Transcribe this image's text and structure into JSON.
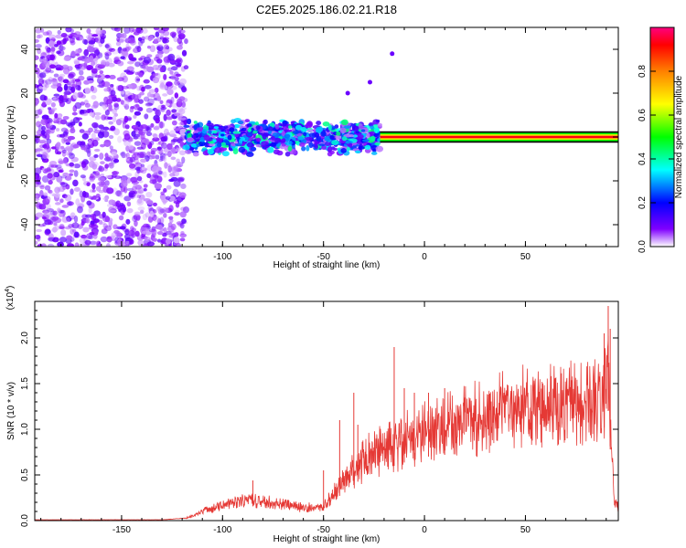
{
  "title": "C2E5.2025.186.02.21.R18",
  "colors": {
    "spectrum_scale": [
      "#ffffff",
      "#8000ff",
      "#0000ff",
      "#00ffff",
      "#00ff00",
      "#ffff00",
      "#ff8000",
      "#ff0000",
      "#ff0080"
    ],
    "snr_line": "#e53935",
    "axes": "#000000"
  },
  "chart_data": [
    {
      "type": "heatmap",
      "xlabel": "Height of straight line (km)",
      "ylabel": "Frequency (Hz)",
      "xlim": [
        -193,
        96
      ],
      "ylim": [
        -50,
        50
      ],
      "x_ticks": [
        -150,
        -100,
        -50,
        0,
        50
      ],
      "y_ticks": [
        -40,
        -20,
        0,
        20,
        40
      ],
      "colorbar": {
        "label": "Normalized spectral amplitude",
        "range": [
          0,
          1
        ],
        "ticks": [
          "0.0",
          "0.2",
          "0.4",
          "0.6",
          "0.8"
        ]
      },
      "regions": [
        {
          "x_range": [
            -193,
            -118
          ],
          "freq_range": [
            -50,
            50
          ],
          "character": "scattered low-amplitude noise"
        },
        {
          "x_range": [
            -118,
            -22
          ],
          "freq_range": [
            -12,
            12
          ],
          "character": "mixed amplitude signal band around 0 Hz"
        },
        {
          "x_range": [
            -22,
            96
          ],
          "freq_range": [
            -2,
            2
          ],
          "character": "strong narrow line at 0 Hz"
        }
      ],
      "outlier_points": [
        {
          "x": -38,
          "y": 20
        },
        {
          "x": -27,
          "y": 25
        },
        {
          "x": -16,
          "y": 38
        }
      ]
    },
    {
      "type": "line",
      "xlabel": "Height of straight line (km)",
      "ylabel": "SNR (10 * v/v)",
      "y_multiplier_label": "(x10",
      "y_multiplier_exponent": "4",
      "xlim": [
        -193,
        96
      ],
      "ylim": [
        0,
        24000
      ],
      "x_ticks": [
        -150,
        -100,
        -50,
        0,
        50
      ],
      "y_ticks": [
        {
          "value": 0,
          "label": "0.0"
        },
        {
          "value": 5000,
          "label": "0.5"
        },
        {
          "value": 10000,
          "label": "1.0"
        },
        {
          "value": 15000,
          "label": "1.5"
        },
        {
          "value": 20000,
          "label": "2.0"
        }
      ],
      "series": [
        {
          "envelope": [
            [
              -193,
              100
            ],
            [
              -160,
              100
            ],
            [
              -130,
              100
            ],
            [
              -118,
              300
            ],
            [
              -110,
              1200
            ],
            [
              -100,
              2000
            ],
            [
              -90,
              2700
            ],
            [
              -80,
              2500
            ],
            [
              -70,
              2100
            ],
            [
              -60,
              1700
            ],
            [
              -50,
              1800
            ],
            [
              -45,
              3500
            ],
            [
              -40,
              5200
            ],
            [
              -35,
              6500
            ],
            [
              -30,
              8000
            ],
            [
              -25,
              8800
            ],
            [
              -20,
              9600
            ],
            [
              -15,
              10000
            ],
            [
              -10,
              10600
            ],
            [
              -5,
              11000
            ],
            [
              0,
              11600
            ],
            [
              10,
              12000
            ],
            [
              20,
              12800
            ],
            [
              30,
              13800
            ],
            [
              40,
              14600
            ],
            [
              50,
              15000
            ],
            [
              60,
              15200
            ],
            [
              70,
              15200
            ],
            [
              80,
              15300
            ],
            [
              88,
              15500
            ],
            [
              91,
              20000
            ],
            [
              92,
              13000
            ],
            [
              94,
              2500
            ],
            [
              96,
              1600
            ]
          ],
          "spikes": [
            [
              -85,
              4400
            ],
            [
              -50,
              5500
            ],
            [
              -42,
              11000
            ],
            [
              -35,
              14000
            ],
            [
              -33,
              10500
            ],
            [
              -15,
              19000
            ],
            [
              -10,
              14500
            ],
            [
              -5,
              14000
            ],
            [
              2,
              14000
            ],
            [
              10,
              14500
            ],
            [
              89,
              20500
            ],
            [
              91,
              23500
            ],
            [
              92,
              21000
            ]
          ]
        }
      ]
    }
  ]
}
